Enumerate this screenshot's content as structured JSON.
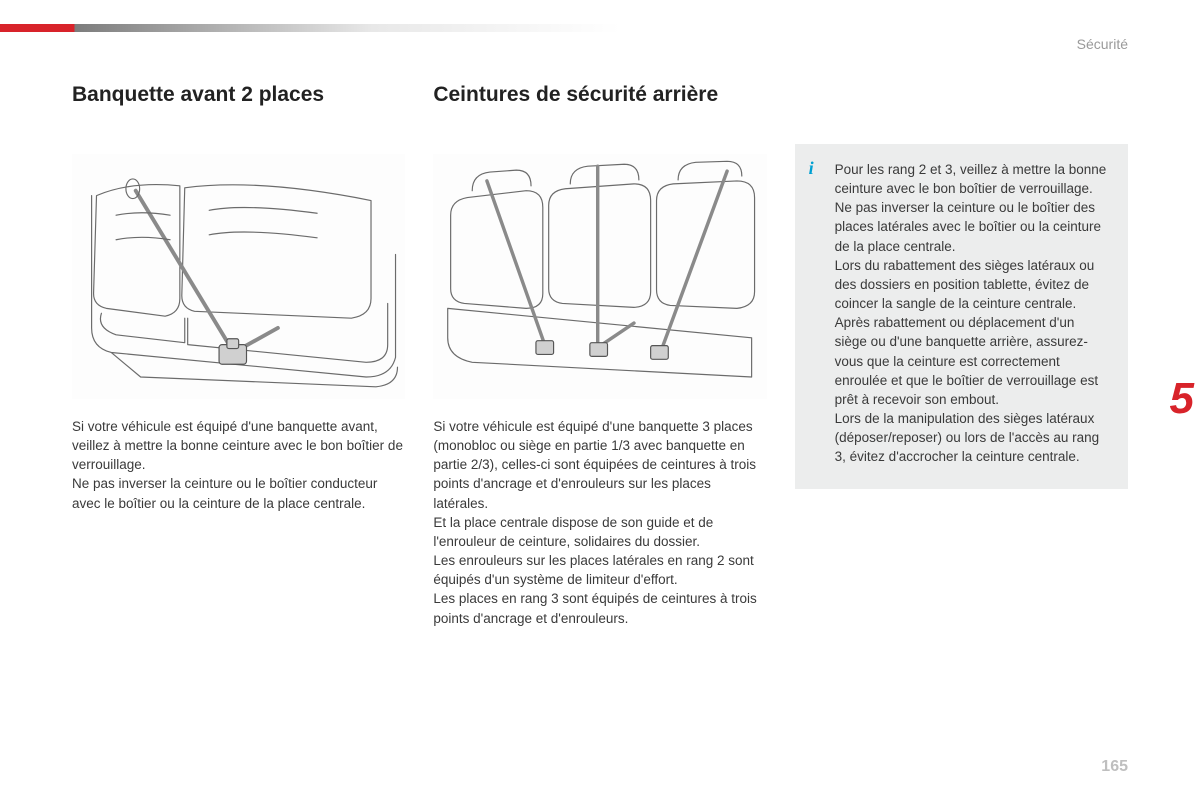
{
  "category": "Sécurité",
  "chapter_number": "5",
  "page_number": "165",
  "colors": {
    "accent_red": "#d8232a",
    "info_blue": "#00a0d2",
    "box_bg": "#eceded",
    "muted_text": "#9a9a9a",
    "body_text": "#3a3a3a",
    "page_num": "#bfbfbf",
    "illus_stroke": "#6b6b6b"
  },
  "typography": {
    "heading_size_pt": 16,
    "body_size_pt": 10,
    "chapter_size_pt": 33
  },
  "col1": {
    "heading": "Banquette avant 2 places",
    "text": "Si votre véhicule est équipé d'une banquette avant, veillez à mettre la bonne ceinture avec le bon boîtier de verrouillage.\nNe pas inverser la ceinture ou le boîtier conducteur avec le boîtier ou la ceinture de la place centrale."
  },
  "col2": {
    "heading": "Ceintures de sécurité arrière",
    "text": "Si votre véhicule est équipé d'une banquette 3 places (monobloc ou siège en partie 1/3 avec banquette en partie 2/3), celles-ci sont équipées de ceintures à trois points d'ancrage et d'enrouleurs sur les places latérales.\nEt la place centrale dispose de son guide et de l'enrouleur de ceinture, solidaires du dossier.\nLes enrouleurs sur les places latérales en rang 2 sont équipés d'un système de limiteur d'effort.\nLes places en rang 3 sont équipés de ceintures à trois points d'ancrage et d'enrouleurs."
  },
  "infobox": {
    "text": "Pour les rang 2 et 3, veillez à mettre la bonne ceinture avec le bon boîtier de verrouillage.\nNe pas inverser la ceinture ou le boîtier des places latérales avec le boîtier ou la ceinture de la place centrale.\nLors du rabattement des sièges latéraux ou des dossiers en position tablette, évitez de coincer la sangle de la ceinture centrale.\nAprès rabattement ou déplacement d'un siège ou d'une banquette arrière, assurez-vous que la ceinture est correctement enroulée et que le boîtier de verrouillage est prêt à recevoir son embout.\nLors de la manipulation des sièges latéraux (déposer/reposer) ou lors de l'accès au rang 3, évitez d'accrocher la ceinture centrale."
  },
  "illustrations": {
    "left": {
      "type": "line-drawing",
      "subject": "front-bench-seat-with-seatbelt",
      "stroke": "#6b6b6b",
      "stroke_width": 1.2
    },
    "right": {
      "type": "line-drawing",
      "subject": "rear-bench-three-seatbelts",
      "stroke": "#6b6b6b",
      "stroke_width": 1.2
    }
  }
}
